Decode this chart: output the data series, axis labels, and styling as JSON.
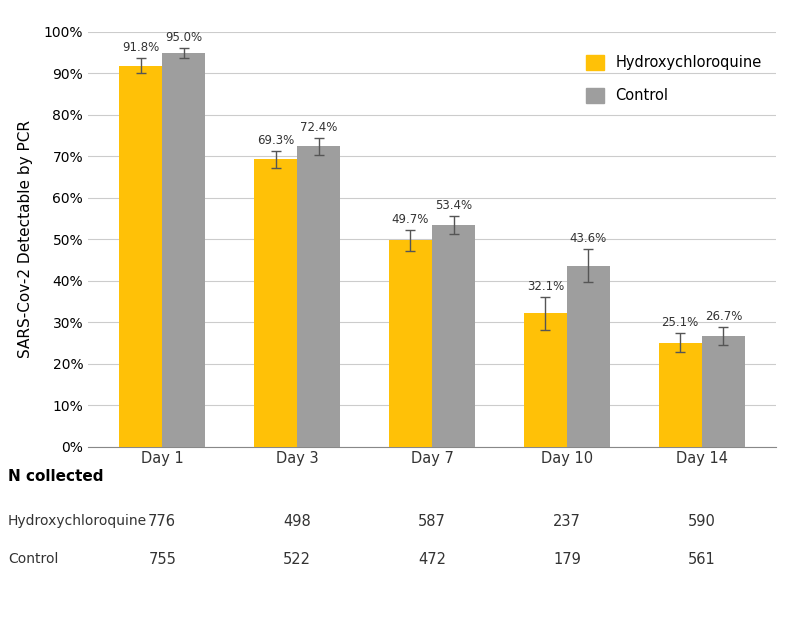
{
  "categories": [
    "Day 1",
    "Day 3",
    "Day 7",
    "Day 10",
    "Day 14"
  ],
  "hcq_values": [
    0.918,
    0.693,
    0.497,
    0.321,
    0.251
  ],
  "ctrl_values": [
    0.95,
    0.724,
    0.534,
    0.436,
    0.267
  ],
  "hcq_errors": [
    0.018,
    0.02,
    0.025,
    0.04,
    0.022
  ],
  "ctrl_errors": [
    0.012,
    0.02,
    0.022,
    0.04,
    0.022
  ],
  "hcq_labels": [
    "91.8%",
    "69.3%",
    "49.7%",
    "32.1%",
    "25.1%"
  ],
  "ctrl_labels": [
    "95.0%",
    "72.4%",
    "53.4%",
    "43.6%",
    "26.7%"
  ],
  "hcq_color": "#FFC107",
  "ctrl_color": "#9E9E9E",
  "ylabel": "SARS-Cov-2 Detectable by PCR",
  "legend_hcq": "Hydroxychloroquine",
  "legend_ctrl": "Control",
  "n_collected_label": "N collected",
  "row_hcq_label": "Hydroxychloroquine",
  "row_ctrl_label": "Control",
  "hcq_n": [
    "776",
    "498",
    "587",
    "237",
    "590"
  ],
  "ctrl_n": [
    "755",
    "522",
    "472",
    "179",
    "561"
  ],
  "bar_width": 0.32,
  "ylim": [
    0,
    1.0
  ],
  "yticks": [
    0,
    0.1,
    0.2,
    0.3,
    0.4,
    0.5,
    0.6,
    0.7,
    0.8,
    0.9,
    1.0
  ],
  "ytick_labels": [
    "0%",
    "10%",
    "20%",
    "30%",
    "40%",
    "50%",
    "60%",
    "70%",
    "80%",
    "90%",
    "100%"
  ]
}
